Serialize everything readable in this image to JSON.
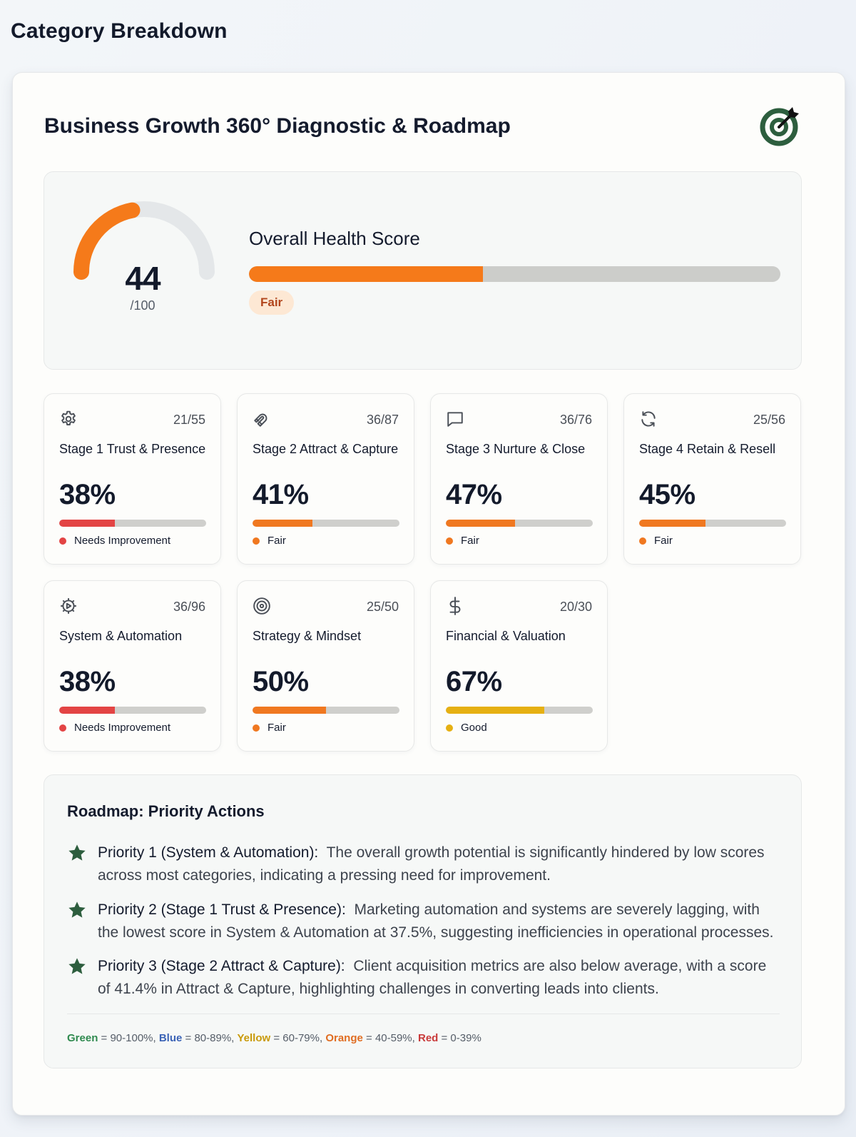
{
  "page": {
    "title": "Category Breakdown"
  },
  "card": {
    "title": "Business Growth 360° Diagnostic & Roadmap",
    "logo_icon": "target-arrow-icon",
    "logo_color": "#2d5e3e"
  },
  "health": {
    "score": "44",
    "max": "/100",
    "label": "Overall Health Score",
    "percent": 44,
    "status": "Fair",
    "accent": "#f57a1a"
  },
  "stages": [
    {
      "icon": "gear-icon",
      "score": "21/55",
      "name": "Stage 1 Trust & Presence",
      "pct": "38%",
      "value": 38,
      "status": "Needs Improvement",
      "color": "#e34444"
    },
    {
      "icon": "magnet-icon",
      "score": "36/87",
      "name": "Stage 2 Attract & Capture",
      "pct": "41%",
      "value": 41,
      "status": "Fair",
      "color": "#f07820"
    },
    {
      "icon": "chat-bubble-icon",
      "score": "36/76",
      "name": "Stage 3 Nurture & Close",
      "pct": "47%",
      "value": 47,
      "status": "Fair",
      "color": "#f07820"
    },
    {
      "icon": "refresh-icon",
      "score": "25/56",
      "name": "Stage 4 Retain & Resell",
      "pct": "45%",
      "value": 45,
      "status": "Fair",
      "color": "#f07820"
    },
    {
      "icon": "cog-play-icon",
      "score": "36/96",
      "name": "System & Automation",
      "pct": "38%",
      "value": 38,
      "status": "Needs Improvement",
      "color": "#e34444"
    },
    {
      "icon": "target-icon",
      "score": "25/50",
      "name": "Strategy & Mindset",
      "pct": "50%",
      "value": 50,
      "status": "Fair",
      "color": "#f07820"
    },
    {
      "icon": "dollar-icon",
      "score": "20/30",
      "name": "Financial & Valuation",
      "pct": "67%",
      "value": 67,
      "status": "Good",
      "color": "#e6b012"
    }
  ],
  "roadmap": {
    "title": "Roadmap: Priority Actions",
    "star_color": "#2d5e3e",
    "items": [
      {
        "head": "Priority 1 (System & Automation):",
        "body": "The overall growth potential is significantly hindered by low scores across most categories, indicating a pressing need for improvement."
      },
      {
        "head": "Priority 2 (Stage 1 Trust & Presence):",
        "body": "Marketing automation and systems are severely lagging, with the lowest score in System & Automation at 37.5%, suggesting inefficiencies in operational processes."
      },
      {
        "head": "Priority 3 (Stage 2 Attract & Capture):",
        "body": "Client acquisition metrics are also below average, with a score of 41.4% in Attract & Capture, highlighting challenges in converting leads into clients."
      }
    ],
    "legend": [
      {
        "name": "Green",
        "range": " = 90-100%, ",
        "color": "#2f8a4f"
      },
      {
        "name": "Blue",
        "range": " = 80-89%, ",
        "color": "#3b63b6"
      },
      {
        "name": "Yellow",
        "range": " = 60-79%, ",
        "color": "#c99a0a"
      },
      {
        "name": "Orange",
        "range": " = 40-59%, ",
        "color": "#e06d22"
      },
      {
        "name": "Red",
        "range": " = 0-39%",
        "color": "#c93a3a"
      }
    ]
  }
}
